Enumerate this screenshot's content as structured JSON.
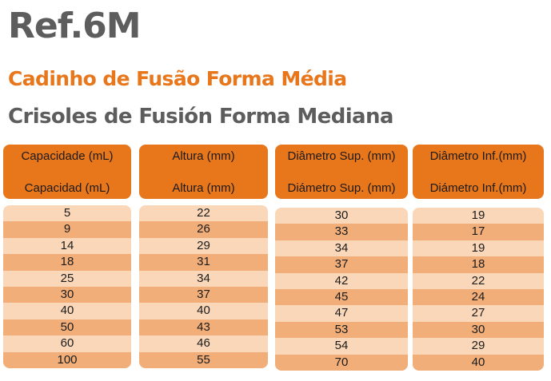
{
  "header": {
    "ref": "Ref.6M",
    "title_pt": "Cadinho de Fusão Forma Média",
    "title_es": "Crisoles de Fusión Forma Mediana"
  },
  "table": {
    "columns": [
      {
        "head_pt": "Capacidade (mL)",
        "head_es": "Capacidad (mL)",
        "values": [
          "5",
          "9",
          "14",
          "18",
          "25",
          "30",
          "40",
          "50",
          "60",
          "100"
        ]
      },
      {
        "head_pt": "Altura (mm)",
        "head_es": "Altura (mm)",
        "values": [
          "22",
          "26",
          "29",
          "31",
          "34",
          "37",
          "40",
          "43",
          "46",
          "55"
        ]
      },
      {
        "head_pt": "Diâmetro Sup. (mm)",
        "head_es": "Diámetro Sup. (mm)",
        "values": [
          "30",
          "33",
          "34",
          "37",
          "42",
          "45",
          "47",
          "53",
          "54",
          "70"
        ]
      },
      {
        "head_pt": "Diâmetro Inf.(mm)",
        "head_es": "Diámetro Inf.(mm)",
        "values": [
          "19",
          "17",
          "19",
          "18",
          "22",
          "24",
          "27",
          "30",
          "29",
          "40"
        ]
      }
    ]
  },
  "colors": {
    "accent": "#e8761b",
    "text_gray": "#5d5d5d",
    "row_light": "#fbd7b9",
    "row_dark": "#f2ae79"
  }
}
